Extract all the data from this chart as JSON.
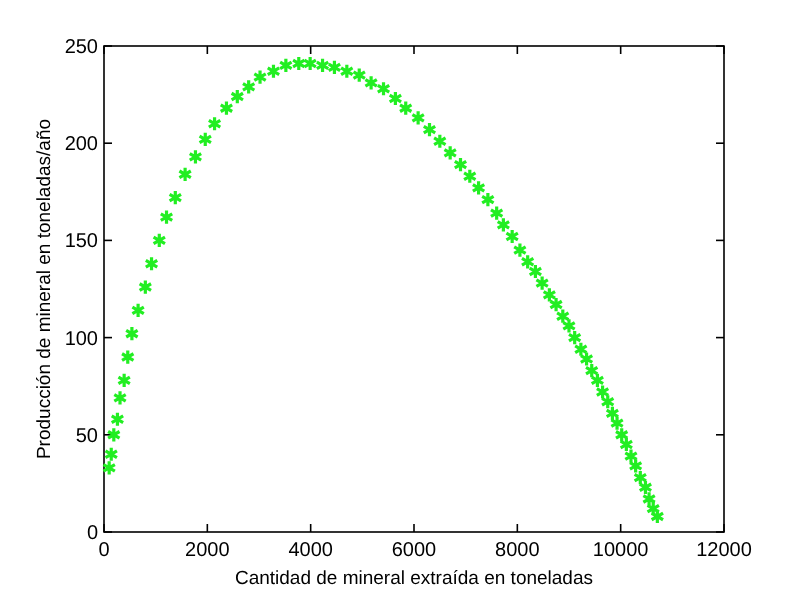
{
  "chart_data": {
    "type": "scatter",
    "xlabel": "Cantidad de mineral extraída en toneladas",
    "ylabel": "Producción de mineral en toneladas/año",
    "x": [
      100,
      140,
      190,
      260,
      310,
      390,
      460,
      540,
      660,
      800,
      920,
      1070,
      1210,
      1380,
      1570,
      1770,
      1960,
      2140,
      2370,
      2580,
      2800,
      3020,
      3280,
      3520,
      3770,
      3990,
      4230,
      4460,
      4700,
      4940,
      5170,
      5410,
      5640,
      5840,
      6080,
      6300,
      6500,
      6700,
      6900,
      7080,
      7250,
      7430,
      7600,
      7730,
      7900,
      8050,
      8200,
      8350,
      8480,
      8620,
      8750,
      8880,
      9000,
      9110,
      9230,
      9340,
      9440,
      9550,
      9650,
      9750,
      9840,
      9930,
      10020,
      10110,
      10200,
      10290,
      10380,
      10480,
      10550,
      10630,
      10710
    ],
    "values": [
      33,
      40,
      50,
      58,
      69,
      78,
      90,
      102,
      114,
      126,
      138,
      150,
      162,
      172,
      184,
      193,
      202,
      210,
      218,
      224,
      229,
      234,
      237,
      240,
      241,
      241,
      240,
      239,
      237,
      235,
      231,
      228,
      223,
      218,
      213,
      207,
      201,
      195,
      189,
      183,
      177,
      171,
      164,
      158,
      152,
      145,
      139,
      134,
      128,
      122,
      117,
      111,
      106,
      100,
      94,
      89,
      83,
      78,
      72,
      67,
      61,
      56,
      50,
      45,
      39,
      34,
      28,
      23,
      17,
      12,
      8
    ],
    "color": "#22ee22",
    "marker": "cross",
    "xlim": [
      0,
      12000
    ],
    "ylim": [
      0,
      250
    ],
    "xticks": [
      0,
      2000,
      4000,
      6000,
      8000,
      10000,
      12000
    ],
    "yticks": [
      0,
      50,
      100,
      150,
      200,
      250
    ],
    "grid": false
  }
}
